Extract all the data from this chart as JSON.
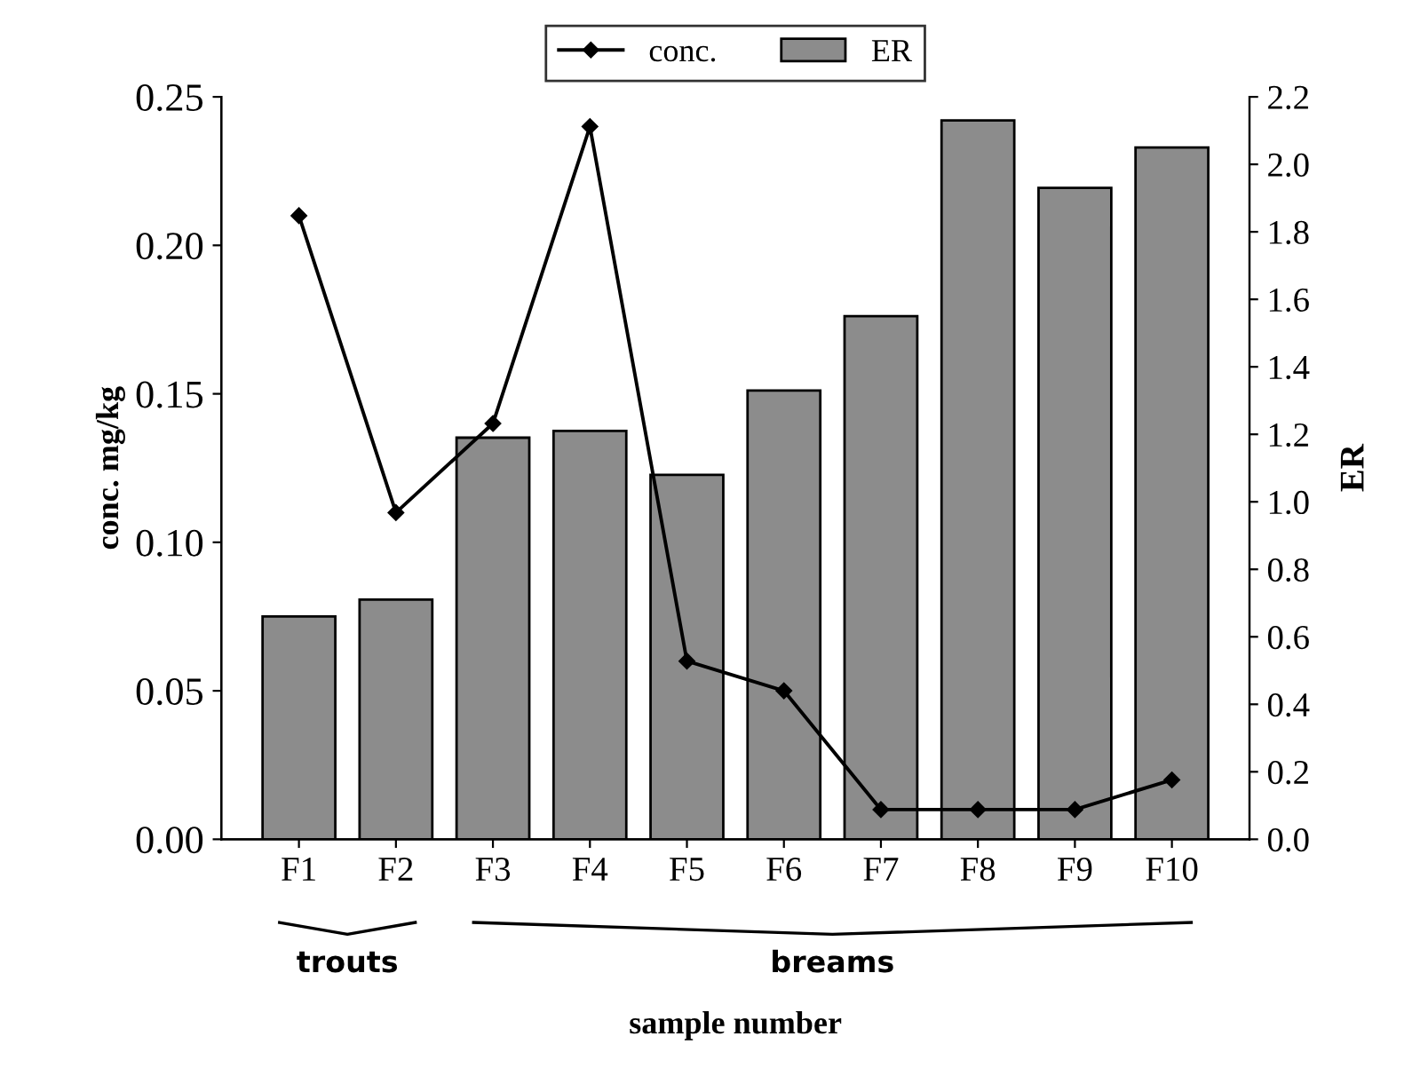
{
  "chart_data": {
    "type": "bar",
    "xlabel": "sample number",
    "ylabel": "conc. mg/kg",
    "y2label": "ER",
    "categories": [
      "F1",
      "F2",
      "F3",
      "F4",
      "F5",
      "F6",
      "F7",
      "F8",
      "F9",
      "F10"
    ],
    "series": [
      {
        "name": "conc.",
        "type": "line",
        "color": "#000000",
        "marker": "diamond",
        "line_style": "solid",
        "values": [
          0.21,
          0.11,
          0.14,
          0.24,
          0.06,
          0.05,
          0.01,
          0.01,
          0.01,
          0.02
        ]
      },
      {
        "name": "ER",
        "axis": "y2",
        "color": "#8c8c8c",
        "values": [
          0.66,
          0.71,
          1.19,
          1.21,
          1.08,
          1.33,
          1.55,
          2.13,
          1.93,
          2.05
        ]
      }
    ],
    "ylim": [
      0,
      0.25
    ],
    "yticks": [
      {
        "value": 0,
        "label": "0.00"
      },
      {
        "value": 0.05,
        "label": "0.05"
      },
      {
        "value": 0.1,
        "label": "0.10"
      },
      {
        "value": 0.15,
        "label": "0.15"
      },
      {
        "value": 0.2,
        "label": "0.20"
      },
      {
        "value": 0.25,
        "label": "0.25"
      }
    ],
    "y2lim": [
      0,
      2.2
    ],
    "y2ticks": [
      {
        "value": 0,
        "label": "0.0"
      },
      {
        "value": 0.2,
        "label": "0.2"
      },
      {
        "value": 0.4,
        "label": "0.4"
      },
      {
        "value": 0.6,
        "label": "0.6"
      },
      {
        "value": 0.8,
        "label": "0.8"
      },
      {
        "value": 1,
        "label": "1.0"
      },
      {
        "value": 1.2,
        "label": "1.2"
      },
      {
        "value": 1.4,
        "label": "1.4"
      },
      {
        "value": 1.6,
        "label": "1.6"
      },
      {
        "value": 1.8,
        "label": "1.8"
      },
      {
        "value": 2,
        "label": "2.0"
      },
      {
        "value": 2.2,
        "label": "2.2"
      }
    ],
    "annotations": [
      "trouts",
      "breams"
    ],
    "grid": false,
    "legend": "top"
  }
}
